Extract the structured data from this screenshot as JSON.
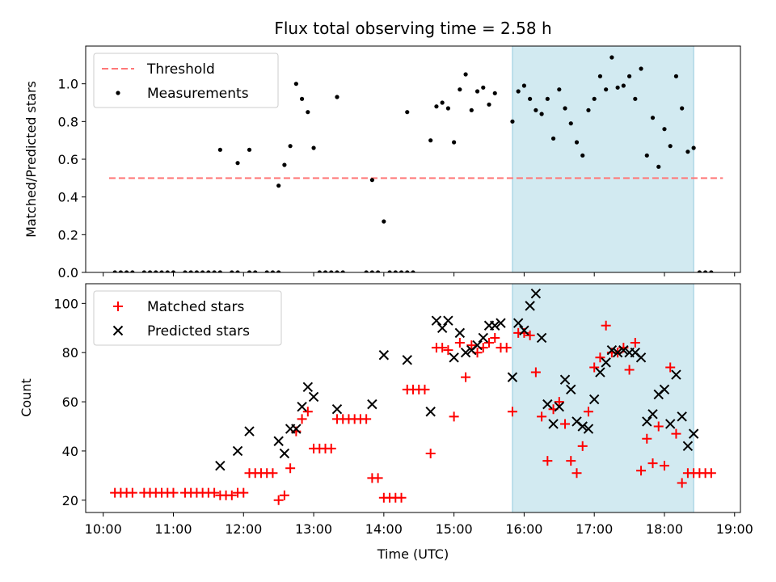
{
  "title": "Flux total observing time = 2.58 h",
  "xlabel": "Time (UTC)",
  "x_ticks": [
    "10:00",
    "11:00",
    "12:00",
    "13:00",
    "14:00",
    "15:00",
    "16:00",
    "17:00",
    "18:00",
    "19:00"
  ],
  "colors": {
    "threshold": "#ff7777",
    "measurement": "#000000",
    "matched": "#ff0000",
    "predicted": "#000000",
    "highlight": "#add8e6"
  },
  "chart_data": [
    {
      "type": "scatter",
      "ylabel": "Matched/Predicted stars",
      "xlim": [
        "09:45",
        "19:05"
      ],
      "ylim": [
        0,
        1.2
      ],
      "y_ticks": [
        "0.0",
        "0.2",
        "0.4",
        "0.6",
        "0.8",
        "1.0"
      ],
      "legend": {
        "placement": "top-left",
        "entries": [
          "Threshold",
          "Measurements"
        ]
      },
      "highlight_span": [
        "15:50",
        "18:25"
      ],
      "threshold": {
        "name": "Threshold",
        "y": 0.5,
        "x": [
          "10:05",
          "18:50"
        ]
      },
      "series": [
        {
          "name": "Measurements",
          "x": [
            "10:10",
            "10:15",
            "10:20",
            "10:25",
            "10:35",
            "10:40",
            "10:45",
            "10:50",
            "10:55",
            "11:00",
            "11:10",
            "11:15",
            "11:20",
            "11:25",
            "11:30",
            "11:35",
            "11:40",
            "11:50",
            "11:55",
            "12:05",
            "12:10",
            "12:20",
            "12:25",
            "12:30",
            "11:40",
            "11:55",
            "12:05",
            "12:30",
            "12:35",
            "12:40",
            "12:45",
            "12:50",
            "12:55",
            "13:00",
            "13:05",
            "13:10",
            "13:15",
            "13:20",
            "13:25",
            "13:45",
            "13:50",
            "13:55",
            "14:05",
            "14:10",
            "14:15",
            "14:20",
            "14:25",
            "13:20",
            "13:50",
            "14:00",
            "14:20",
            "14:40",
            "14:45",
            "14:50",
            "14:55",
            "15:00",
            "15:05",
            "15:10",
            "15:15",
            "15:20",
            "15:25",
            "15:30",
            "15:35",
            "15:50",
            "15:55",
            "16:00",
            "16:05",
            "16:10",
            "16:15",
            "16:20",
            "16:25",
            "16:30",
            "16:35",
            "16:40",
            "16:45",
            "16:50",
            "16:55",
            "17:00",
            "17:05",
            "17:10",
            "17:15",
            "17:20",
            "17:25",
            "17:30",
            "17:35",
            "17:40",
            "17:45",
            "17:50",
            "17:55",
            "18:00",
            "18:05",
            "18:10",
            "18:15",
            "18:20",
            "18:25",
            "18:30",
            "18:35",
            "18:40"
          ],
          "y": [
            0,
            0,
            0,
            0,
            0,
            0,
            0,
            0,
            0,
            0,
            0,
            0,
            0,
            0,
            0,
            0,
            0,
            0,
            0,
            0,
            0,
            0,
            0,
            0,
            0.65,
            0.58,
            0.65,
            0.46,
            0.57,
            0.67,
            1.0,
            0.92,
            0.85,
            0.66,
            0,
            0,
            0,
            0,
            0,
            0,
            0,
            0,
            0,
            0,
            0,
            0,
            0,
            0.93,
            0.49,
            0.27,
            0.85,
            0.7,
            0.88,
            0.9,
            0.87,
            0.69,
            0.97,
            1.05,
            0.86,
            0.96,
            0.98,
            0.89,
            0.95,
            0.8,
            0.96,
            0.99,
            0.92,
            0.86,
            0.84,
            0.92,
            0.71,
            0.97,
            0.87,
            0.79,
            0.69,
            0.62,
            0.86,
            0.92,
            1.04,
            0.97,
            1.14,
            0.98,
            0.99,
            1.04,
            0.92,
            1.08,
            0.62,
            0.82,
            0.56,
            0.76,
            0.67,
            1.04,
            0.87,
            0.64,
            0.66,
            0,
            0,
            0
          ]
        }
      ]
    },
    {
      "type": "scatter",
      "ylabel": "Count",
      "xlim": [
        "09:45",
        "19:05"
      ],
      "ylim": [
        15,
        108
      ],
      "y_ticks": [
        "20",
        "40",
        "60",
        "80",
        "100"
      ],
      "legend": {
        "placement": "top-left",
        "entries": [
          "Matched stars",
          "Predicted stars"
        ]
      },
      "highlight_span": [
        "15:50",
        "18:25"
      ],
      "series": [
        {
          "name": "Matched stars",
          "marker": "plus",
          "x": [
            "10:10",
            "10:15",
            "10:20",
            "10:25",
            "10:35",
            "10:40",
            "10:45",
            "10:50",
            "10:55",
            "11:00",
            "11:10",
            "11:15",
            "11:20",
            "11:25",
            "11:30",
            "11:35",
            "11:40",
            "11:45",
            "11:50",
            "11:55",
            "12:00",
            "12:05",
            "12:10",
            "12:15",
            "12:20",
            "12:25",
            "12:30",
            "12:35",
            "12:40",
            "12:45",
            "12:50",
            "12:55",
            "13:00",
            "13:05",
            "13:10",
            "13:15",
            "13:20",
            "13:25",
            "13:30",
            "13:35",
            "13:40",
            "13:45",
            "13:50",
            "13:55",
            "14:00",
            "14:05",
            "14:10",
            "14:15",
            "14:20",
            "14:25",
            "14:30",
            "14:35",
            "14:40",
            "14:45",
            "14:50",
            "14:55",
            "15:00",
            "15:05",
            "15:10",
            "15:15",
            "15:20",
            "15:25",
            "15:30",
            "15:35",
            "15:40",
            "15:45",
            "15:50",
            "15:55",
            "16:00",
            "16:05",
            "16:10",
            "16:15",
            "16:20",
            "16:25",
            "16:30",
            "16:35",
            "16:40",
            "16:45",
            "16:50",
            "16:55",
            "17:00",
            "17:05",
            "17:10",
            "17:15",
            "17:20",
            "17:25",
            "17:30",
            "17:35",
            "17:40",
            "17:45",
            "17:50",
            "17:55",
            "18:00",
            "18:05",
            "18:10",
            "18:15",
            "18:20",
            "18:25",
            "18:30",
            "18:35",
            "18:40"
          ],
          "y": [
            23,
            23,
            23,
            23,
            23,
            23,
            23,
            23,
            23,
            23,
            23,
            23,
            23,
            23,
            23,
            23,
            22,
            22,
            22,
            23,
            23,
            31,
            31,
            31,
            31,
            31,
            20,
            22,
            33,
            48,
            53,
            56,
            41,
            41,
            41,
            41,
            53,
            53,
            53,
            53,
            53,
            53,
            29,
            29,
            21,
            21,
            21,
            21,
            65,
            65,
            65,
            65,
            39,
            82,
            82,
            81,
            54,
            84,
            70,
            83,
            80,
            82,
            84,
            86,
            82,
            82,
            56,
            88,
            88,
            87,
            72,
            54,
            36,
            57,
            60,
            51,
            36,
            31,
            42,
            56,
            74,
            78,
            91,
            80,
            80,
            82,
            73,
            84,
            32,
            45,
            35,
            50,
            34,
            74,
            47,
            27,
            31,
            31,
            31,
            31,
            31
          ]
        },
        {
          "name": "Predicted stars",
          "marker": "x",
          "x": [
            "11:40",
            "11:55",
            "12:05",
            "12:30",
            "12:35",
            "12:40",
            "12:45",
            "12:50",
            "12:55",
            "13:00",
            "13:20",
            "13:50",
            "14:00",
            "14:20",
            "14:40",
            "14:45",
            "14:50",
            "14:55",
            "15:00",
            "15:05",
            "15:10",
            "15:15",
            "15:20",
            "15:25",
            "15:30",
            "15:35",
            "15:40",
            "15:50",
            "15:55",
            "16:00",
            "16:05",
            "16:10",
            "16:15",
            "16:20",
            "16:25",
            "16:30",
            "16:35",
            "16:40",
            "16:45",
            "16:50",
            "16:55",
            "17:00",
            "17:05",
            "17:10",
            "17:15",
            "17:20",
            "17:25",
            "17:30",
            "17:35",
            "17:40",
            "17:45",
            "17:50",
            "17:55",
            "18:00",
            "18:05",
            "18:10",
            "18:15",
            "18:20",
            "18:25"
          ],
          "y": [
            34,
            40,
            48,
            44,
            39,
            49,
            49,
            58,
            66,
            62,
            57,
            59,
            79,
            77,
            56,
            93,
            90,
            93,
            78,
            88,
            80,
            81,
            83,
            86,
            91,
            91,
            92,
            70,
            92,
            89,
            99,
            104,
            86,
            59,
            51,
            58,
            69,
            65,
            52,
            50,
            49,
            61,
            72,
            76,
            81,
            80,
            81,
            80,
            80,
            78,
            52,
            55,
            63,
            65,
            51,
            71,
            54,
            42,
            47
          ]
        }
      ]
    }
  ]
}
